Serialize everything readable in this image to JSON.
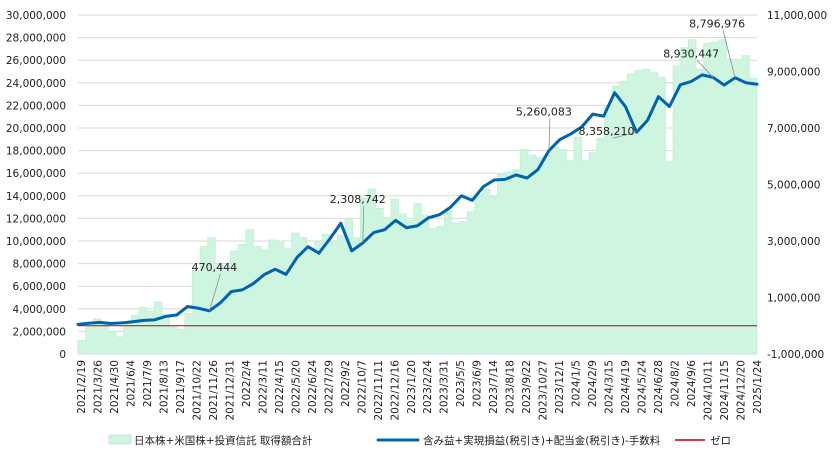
{
  "chart_data": {
    "type": "area",
    "title": "",
    "xlabel": "",
    "ylabel_left": "",
    "ylabel_right": "",
    "grid": true,
    "legend_placement": "bottom",
    "ylim_left": [
      0,
      30000000
    ],
    "ylim_right": [
      -1000000,
      11000000
    ],
    "y_left_ticks": [
      "0",
      "2,000,000",
      "4,000,000",
      "6,000,000",
      "8,000,000",
      "10,000,000",
      "12,000,000",
      "14,000,000",
      "16,000,000",
      "18,000,000",
      "20,000,000",
      "22,000,000",
      "24,000,000",
      "26,000,000",
      "28,000,000",
      "30,000,000"
    ],
    "y_right_ticks": [
      "-1,000,000",
      "1,000,000",
      "3,000,000",
      "5,000,000",
      "7,000,000",
      "9,000,000",
      "11,000,000"
    ],
    "x_ticks": [
      "2021/2/19",
      "2021/3/26",
      "2021/4/30",
      "2021/6/4",
      "2021/7/9",
      "2021/8/13",
      "2021/9/17",
      "2021/10/22",
      "2021/11/26",
      "2021/12/31",
      "2022/2/4",
      "2022/3/11",
      "2022/4/15",
      "2022/5/20",
      "2022/6/24",
      "2022/7/29",
      "2022/9/2",
      "2022/10/7",
      "2022/11/11",
      "2022/12/16",
      "2023/1/20",
      "2023/2/24",
      "2023/3/31",
      "2023/5/5",
      "2023/6/9",
      "2023/7/14",
      "2023/8/18",
      "2023/9/22",
      "2023/10/27",
      "2023/12/1",
      "2024/1/5",
      "2024/2/9",
      "2024/3/15",
      "2024/4/19",
      "2024/5/24",
      "2024/6/28",
      "2024/8/2",
      "2024/9/6",
      "2024/10/11",
      "2024/11/15",
      "2024/12/20",
      "2025/1/24"
    ],
    "series": [
      {
        "name": "日本株+米国株+投資信託 取得額合計",
        "axis": "left",
        "kind": "area",
        "color": "#cdf5e0",
        "values": [
          1200000,
          2400000,
          3100000,
          2600000,
          2000000,
          1500000,
          2800000,
          3400000,
          4100000,
          3800000,
          4600000,
          3500000,
          2400000,
          2200000,
          3600000,
          7400000,
          9500000,
          10300000,
          8000000,
          7800000,
          9100000,
          9700000,
          11000000,
          9500000,
          9200000,
          10100000,
          9900000,
          9300000,
          10700000,
          10300000,
          9400000,
          10000000,
          10600000,
          9900000,
          10500000,
          11900000,
          10300000,
          13800000,
          14600000,
          12900000,
          12100000,
          13700000,
          12400000,
          11800000,
          13300000,
          12300000,
          11100000,
          11300000,
          12700000,
          11600000,
          11700000,
          12600000,
          13900000,
          14600000,
          13900000,
          15900000,
          16100000,
          16300000,
          18100000,
          17600000,
          17400000,
          17600000,
          18300000,
          18100000,
          17100000,
          19200000,
          17100000,
          17800000,
          19100000,
          22000000,
          23700000,
          24100000,
          24800000,
          25100000,
          25200000,
          24900000,
          24500000,
          17000000,
          25500000,
          27100000,
          27800000,
          25200000,
          27500000,
          27600000,
          27800000,
          26100000,
          26100000,
          26400000,
          24400000
        ]
      },
      {
        "name": "含み益+実現損益(税引き)+配当金(税引き)-手数料",
        "axis": "right",
        "kind": "line",
        "color": "#0063b0",
        "values": [
          50000,
          90000,
          120000,
          80000,
          100000,
          140000,
          190000,
          210000,
          330000,
          380000,
          680000,
          620000,
          530000,
          810000,
          1210000,
          1270000,
          1490000,
          1810000,
          2000000,
          1820000,
          2420000,
          2800000,
          2570000,
          3080000,
          3630000,
          2650000,
          2930000,
          3300000,
          3400000,
          3730000,
          3470000,
          3540000,
          3820000,
          3930000,
          4190000,
          4600000,
          4440000,
          4920000,
          5160000,
          5180000,
          5340000,
          5230000,
          5530000,
          6200000,
          6590000,
          6790000,
          7040000,
          7490000,
          7420000,
          8250000,
          7750000,
          6850000,
          7270000,
          8110000,
          7760000,
          8530000,
          8650000,
          8880000,
          8790000,
          8520000,
          8780000,
          8600000,
          8550000
        ]
      },
      {
        "name": "ゼロ",
        "axis": "right",
        "kind": "line",
        "color": "#c0000b",
        "values": [
          0
        ]
      }
    ],
    "annotations": [
      "470,444",
      "2,308,742",
      "5,260,083",
      "8,358,210",
      "8,930,447",
      "8,796,976"
    ]
  }
}
